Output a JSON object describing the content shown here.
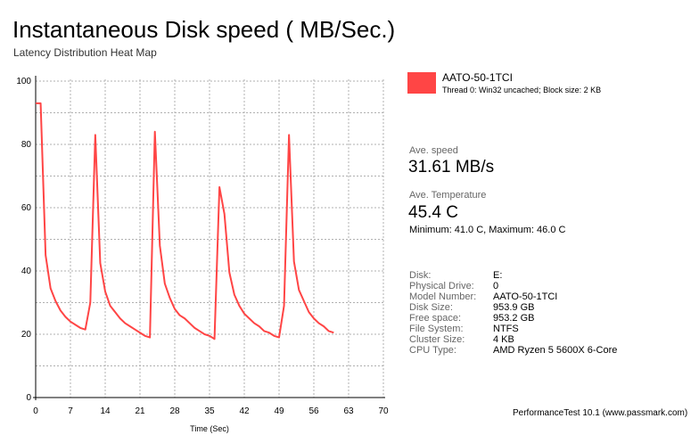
{
  "title": "Instantaneous Disk speed ( MB/Sec.)",
  "subtitle": "Latency Distribution Heat Map",
  "legend": {
    "name": "AATO-50-1TCI",
    "detail": "Thread 0: Win32 uncached; Block size: 2 KB",
    "color": "#ff4545"
  },
  "stats": {
    "speed_label": "Ave. speed",
    "speed_value": "31.61 MB/s",
    "temp_label": "Ave. Temperature",
    "temp_value": "45.4 C",
    "minmax": "Minimum: 41.0 C, Maximum: 46.0 C"
  },
  "info": [
    {
      "label": "Disk:",
      "value": "E:"
    },
    {
      "label": "Physical Drive:",
      "value": "0"
    },
    {
      "label": "Model Number:",
      "value": "AATO-50-1TCI"
    },
    {
      "label": "Disk Size:",
      "value": "953.9 GB"
    },
    {
      "label": "Free space:",
      "value": "953.2 GB"
    },
    {
      "label": "File System:",
      "value": "NTFS"
    },
    {
      "label": "Cluster Size:",
      "value": "4 KB"
    },
    {
      "label": "CPU Type:",
      "value": "AMD Ryzen 5 5600X 6-Core"
    }
  ],
  "footer": "PerformanceTest 10.1 (www.passmark.com)",
  "chart_data": {
    "type": "line",
    "title": "Instantaneous Disk speed ( MB/Sec.)",
    "subtitle": "Latency Distribution Heat Map",
    "xlabel": "Time (Sec)",
    "ylabel": "",
    "xlim": [
      0,
      70
    ],
    "ylim": [
      0,
      100
    ],
    "xticks": [
      0,
      7,
      14,
      21,
      28,
      35,
      42,
      49,
      56,
      63,
      70
    ],
    "yticks": [
      0,
      20,
      40,
      60,
      80,
      100
    ],
    "xtick_labels": [
      "0",
      "7",
      "14",
      "21",
      "28",
      "35",
      "42",
      "49",
      "56",
      "63",
      "70"
    ],
    "ytick_labels": [
      "0",
      "20",
      "40",
      "60",
      "80",
      "100"
    ],
    "grid": true,
    "legend_position": "right",
    "series": [
      {
        "name": "AATO-50-1TCI",
        "color": "#ff4545",
        "x": [
          0,
          1,
          2,
          3,
          4,
          5,
          6,
          7,
          8,
          9,
          10,
          11,
          12,
          13,
          14,
          15,
          16,
          17,
          18,
          19,
          20,
          21,
          22,
          23,
          24,
          25,
          26,
          27,
          28,
          29,
          30,
          31,
          32,
          33,
          34,
          35,
          36,
          37,
          38,
          39,
          40,
          41,
          42,
          43,
          44,
          45,
          46,
          47,
          48,
          49,
          50,
          51,
          52,
          53,
          54,
          55,
          56,
          57,
          58,
          59,
          60
        ],
        "y": [
          93,
          93,
          45,
          34.5,
          30.5,
          27.5,
          25.5,
          24,
          23,
          22,
          21.5,
          30,
          83,
          42.5,
          33.5,
          29,
          27,
          25,
          23.5,
          22.5,
          21.5,
          20.5,
          19.5,
          19,
          84,
          48,
          36,
          31.5,
          28,
          26,
          25,
          23.5,
          22,
          21,
          20,
          19.5,
          18.5,
          66.5,
          58,
          39.5,
          32.5,
          29,
          26.5,
          25,
          23.5,
          22.5,
          21,
          20.5,
          19.5,
          19,
          29,
          83,
          43,
          34,
          30.5,
          27,
          25,
          23.5,
          22.5,
          21,
          20.5
        ]
      }
    ]
  }
}
